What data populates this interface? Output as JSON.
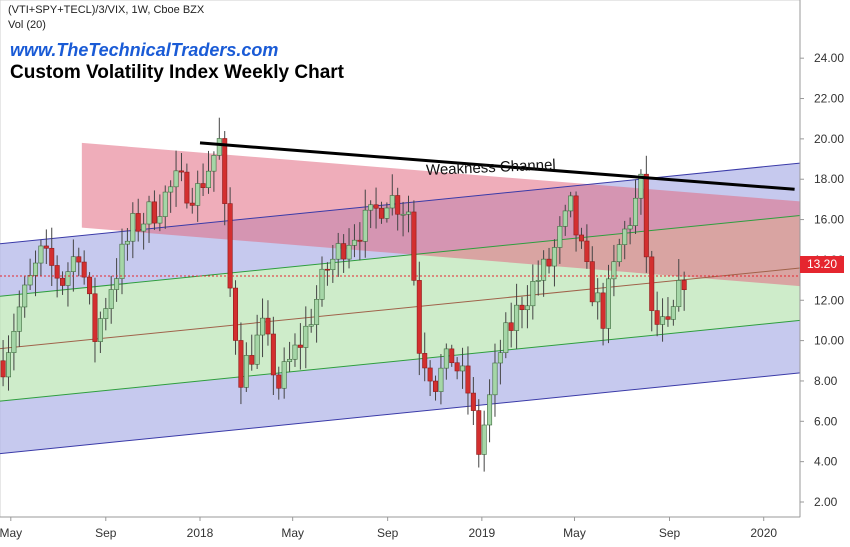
{
  "header": {
    "symbol": "(VTI+SPY+TECL)/3/VIX, 1W, Cboe BZX",
    "volume": "Vol (20)",
    "website": "www.TheTechnicalTraders.com",
    "title": "Custom Volatility Index Weekly Chart"
  },
  "annotations": {
    "weakness_channel": "Weakness Channel"
  },
  "colors": {
    "up_candle": "#a5d6a7",
    "down_candle": "#d32f2f",
    "green_band": "#b9e4b4",
    "blue_band": "#b3b7e8",
    "red_channel": "#e26a82",
    "last_price": "#e5262f"
  },
  "chart_data": {
    "type": "candlestick",
    "title": "Custom Volatility Index Weekly Chart",
    "ylim": [
      2.0,
      25.0
    ],
    "y_ticks": [
      "24.00",
      "22.00",
      "20.00",
      "18.00",
      "16.00",
      "14.00",
      "12.00",
      "10.00",
      "8.00",
      "6.00",
      "4.00",
      "2.00"
    ],
    "x_ticks": [
      "May",
      "Sep",
      "2018",
      "May",
      "Sep",
      "2019",
      "May",
      "Sep",
      "2020"
    ],
    "x_range": [
      "2017-04-17",
      "2020-02-17"
    ],
    "last_price": "13.20",
    "price_path": [
      [
        "2017-04-21",
        9.0
      ],
      [
        "2017-05-12",
        11.6
      ],
      [
        "2017-06-09",
        14.2
      ],
      [
        "2017-07-07",
        13.0
      ],
      [
        "2017-07-28",
        14.6
      ],
      [
        "2017-08-18",
        10.2
      ],
      [
        "2017-09-08",
        12.8
      ],
      [
        "2017-10-06",
        15.6
      ],
      [
        "2017-11-03",
        16.5
      ],
      [
        "2017-12-01",
        17.8
      ],
      [
        "2017-12-29",
        17.4
      ],
      [
        "2018-01-26",
        19.8
      ],
      [
        "2018-02-09",
        12.5
      ],
      [
        "2018-02-23",
        8.4
      ],
      [
        "2018-03-23",
        10.5
      ],
      [
        "2018-04-13",
        7.8
      ],
      [
        "2018-05-18",
        10.5
      ],
      [
        "2018-06-15",
        13.6
      ],
      [
        "2018-07-13",
        15.2
      ],
      [
        "2018-08-10",
        16.0
      ],
      [
        "2018-08-31",
        17.2
      ],
      [
        "2018-09-28",
        16.5
      ],
      [
        "2018-10-12",
        9.8
      ],
      [
        "2018-11-02",
        8.0
      ],
      [
        "2018-11-23",
        9.2
      ],
      [
        "2018-12-14",
        7.5
      ],
      [
        "2018-12-28",
        4.6
      ],
      [
        "2019-01-25",
        9.5
      ],
      [
        "2019-02-22",
        12.0
      ],
      [
        "2019-03-29",
        13.8
      ],
      [
        "2019-04-26",
        16.5
      ],
      [
        "2019-05-17",
        13.2
      ],
      [
        "2019-06-07",
        11.2
      ],
      [
        "2019-06-28",
        14.6
      ],
      [
        "2019-07-26",
        17.6
      ],
      [
        "2019-08-09",
        11.0
      ],
      [
        "2019-08-30",
        10.4
      ],
      [
        "2019-09-20",
        13.2
      ]
    ],
    "channels": [
      {
        "start": [
          "2017-04-17",
          4.4
        ],
        "end": [
          "2020-02-17",
          8.4
        ],
        "color": "#3a3aa8"
      },
      {
        "start": [
          "2017-04-17",
          7.0
        ],
        "end": [
          "2020-02-17",
          11.0
        ],
        "color": "#2e9e3e"
      },
      {
        "start": [
          "2017-04-17",
          9.6
        ],
        "end": [
          "2020-02-17",
          13.6
        ],
        "color": "#a0624a"
      },
      {
        "start": [
          "2017-04-17",
          12.2
        ],
        "end": [
          "2020-02-17",
          16.2
        ],
        "color": "#2e9e3e"
      },
      {
        "start": [
          "2017-04-17",
          14.8
        ],
        "end": [
          "2020-02-17",
          18.8
        ],
        "color": "#3a3aa8"
      }
    ],
    "weakness_channel_band": {
      "top": [
        [
          "2017-08-01",
          19.8
        ],
        [
          "2020-02-17",
          16.9
        ]
      ],
      "bottom": [
        [
          "2017-08-01",
          15.6
        ],
        [
          "2020-02-17",
          12.7
        ]
      ]
    },
    "resistance_line": [
      [
        "2018-01-01",
        19.8
      ],
      [
        "2020-02-10",
        17.5
      ]
    ]
  }
}
